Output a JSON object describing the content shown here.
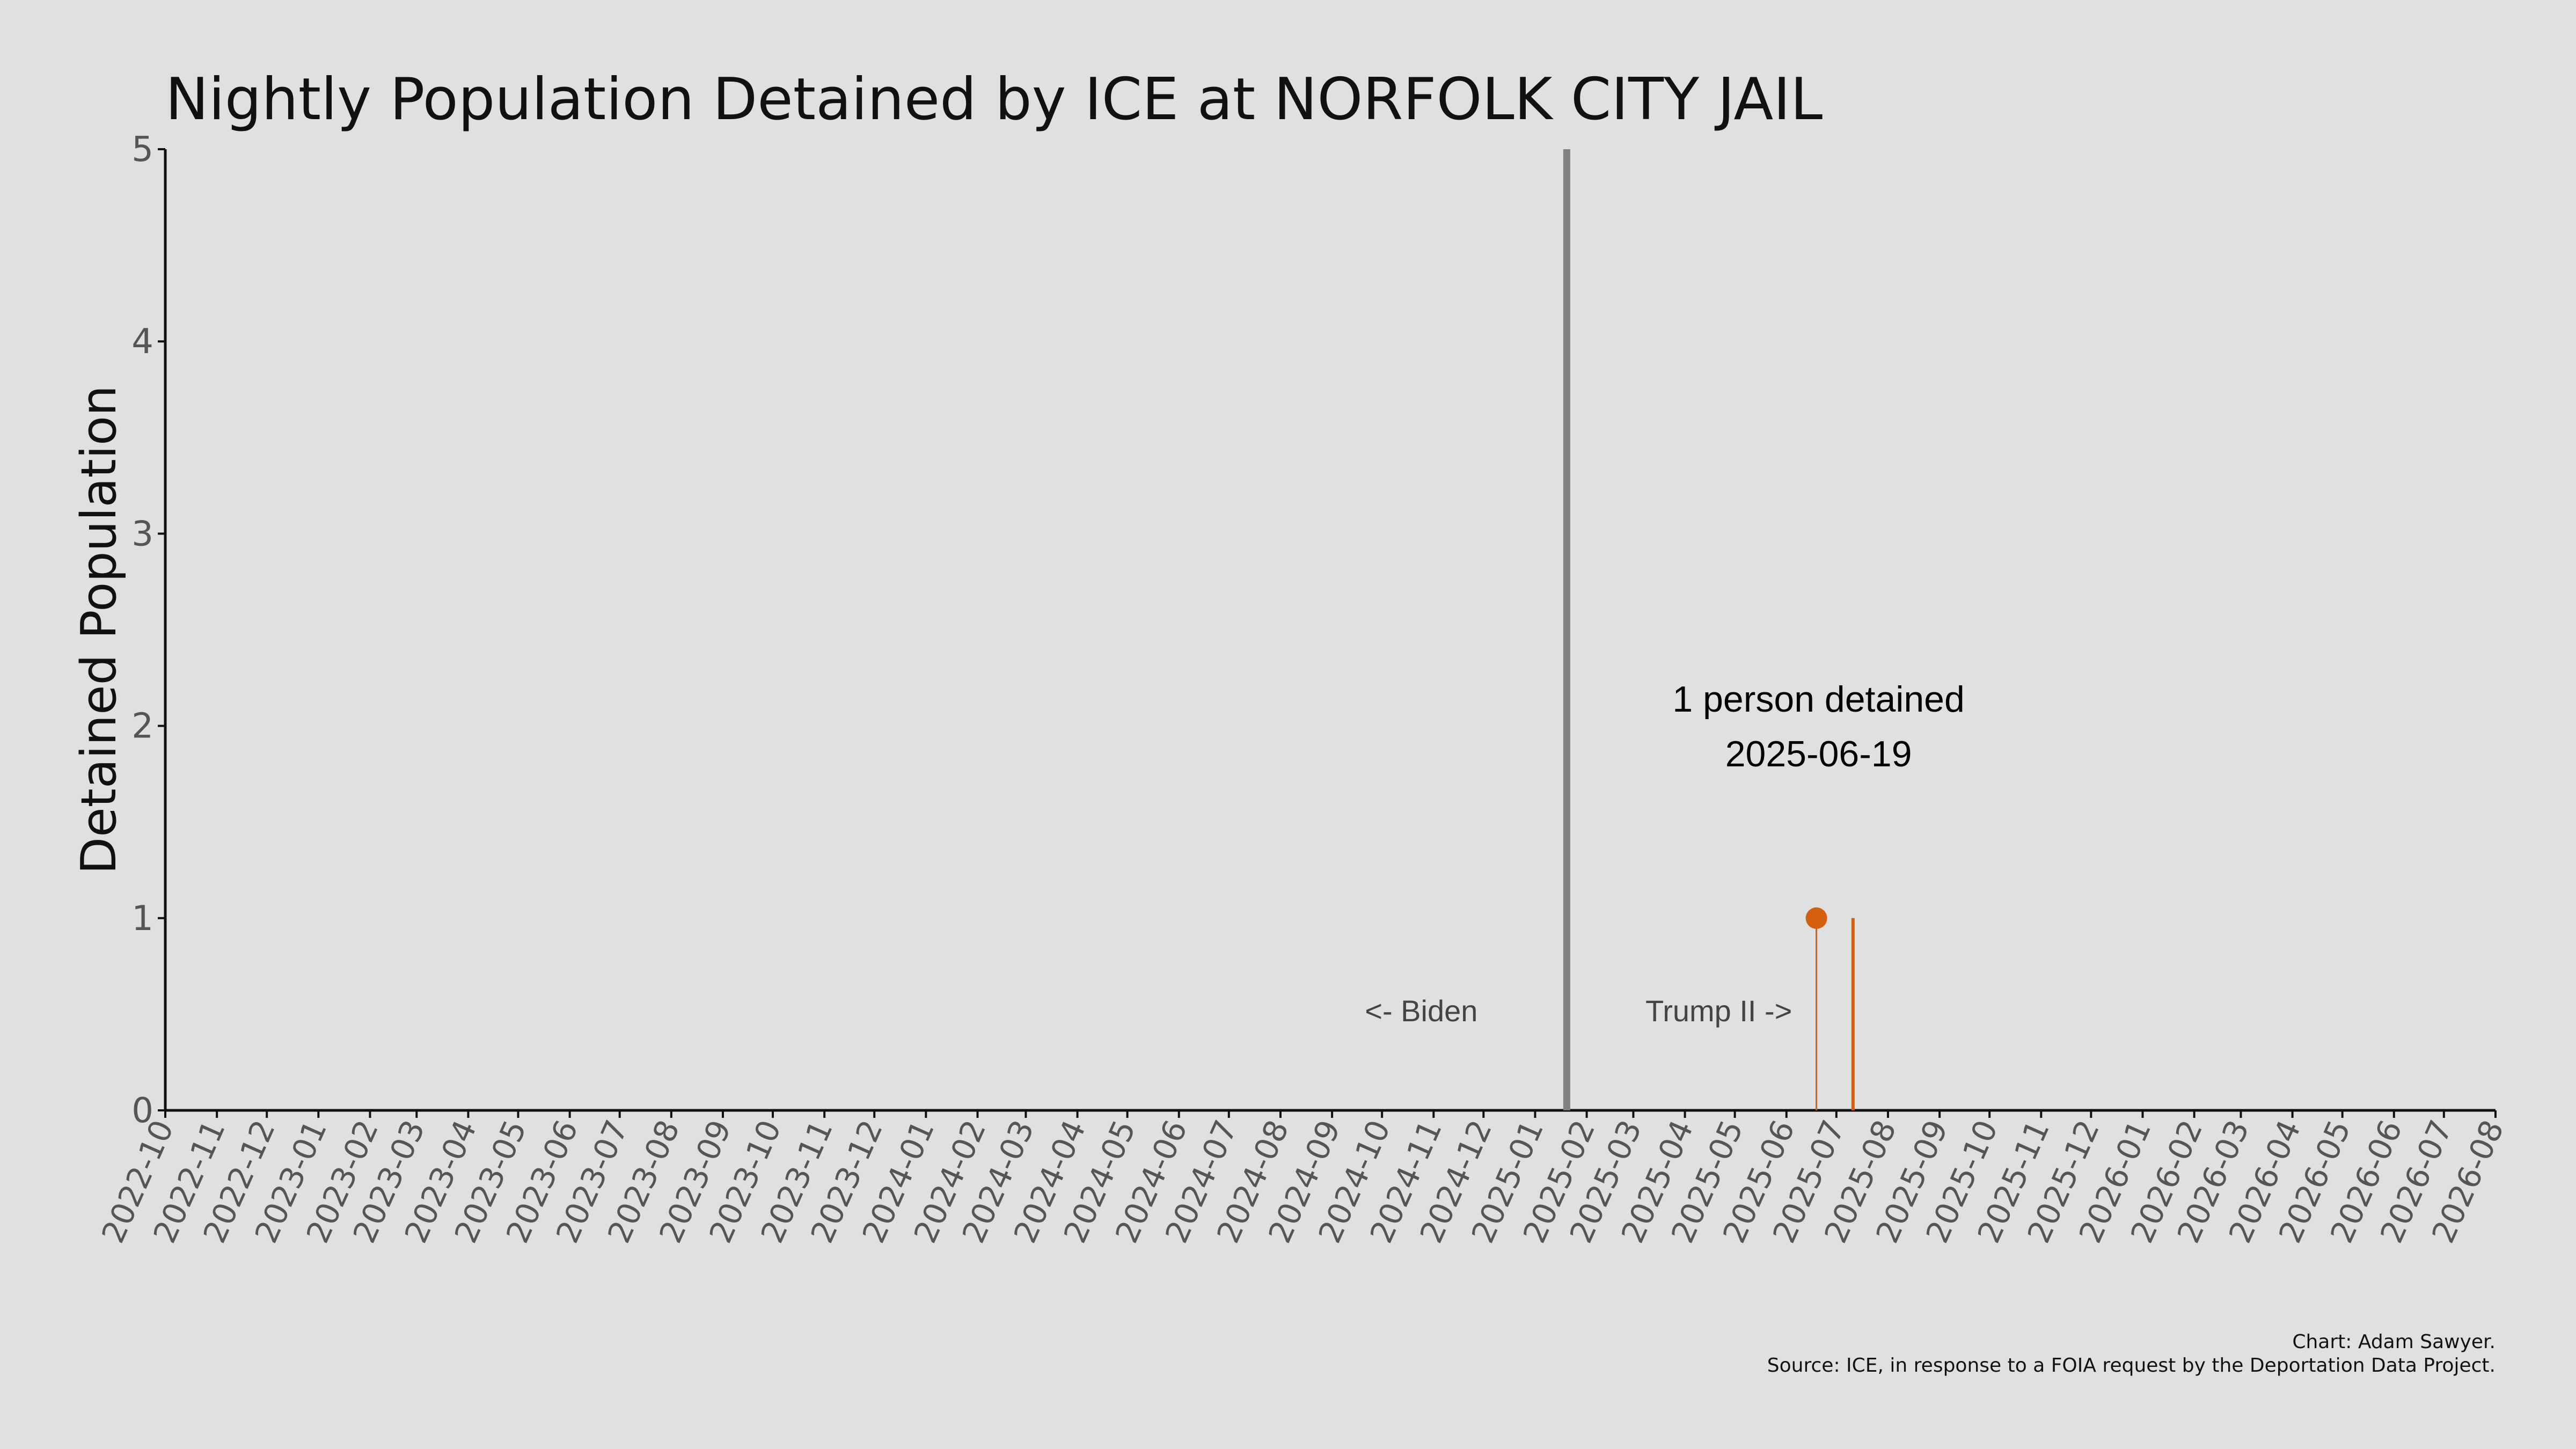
{
  "chart_data": {
    "type": "line",
    "title": "Nightly Population Detained by ICE at NORFOLK CITY JAIL",
    "xlabel": "",
    "ylabel": "Detained Population",
    "ylim": [
      0,
      5
    ],
    "yticks": [
      "0",
      "1",
      "2",
      "3",
      "4",
      "5"
    ],
    "xlim": [
      "2022-10-01",
      "2026-08-01"
    ],
    "xticks": [
      "2022-10",
      "2022-11",
      "2022-12",
      "2023-01",
      "2023-02",
      "2023-03",
      "2023-04",
      "2023-05",
      "2023-06",
      "2023-07",
      "2023-08",
      "2023-09",
      "2023-10",
      "2023-11",
      "2023-12",
      "2024-01",
      "2024-02",
      "2024-03",
      "2024-04",
      "2024-05",
      "2024-06",
      "2024-07",
      "2024-08",
      "2024-09",
      "2024-10",
      "2024-11",
      "2024-12",
      "2025-01",
      "2025-02",
      "2025-03",
      "2025-04",
      "2025-05",
      "2025-06",
      "2025-07",
      "2025-08",
      "2025-09",
      "2025-10",
      "2025-11",
      "2025-12",
      "2026-01",
      "2026-02",
      "2026-03",
      "2026-04",
      "2026-05",
      "2026-06",
      "2026-07",
      "2026-08"
    ],
    "grid": false,
    "series": [
      {
        "color": "#d45f0e",
        "points": [
          {
            "x": "2025-06-19",
            "y": 1
          },
          {
            "x": "2025-07-11",
            "y": 1
          }
        ]
      }
    ],
    "divider": {
      "date": "2025-01-20",
      "color": "#808080",
      "left_label": "<- Biden",
      "right_label": "Trump II ->"
    },
    "highlight": {
      "x": "2025-06-19",
      "y": 1,
      "text_line1": "1 person detained",
      "text_line2": "2025-06-19"
    },
    "credit_line1": "Chart: Adam Sawyer.",
    "credit_line2": "Source: ICE, in response to a FOIA request by the Deportation Data Project."
  }
}
